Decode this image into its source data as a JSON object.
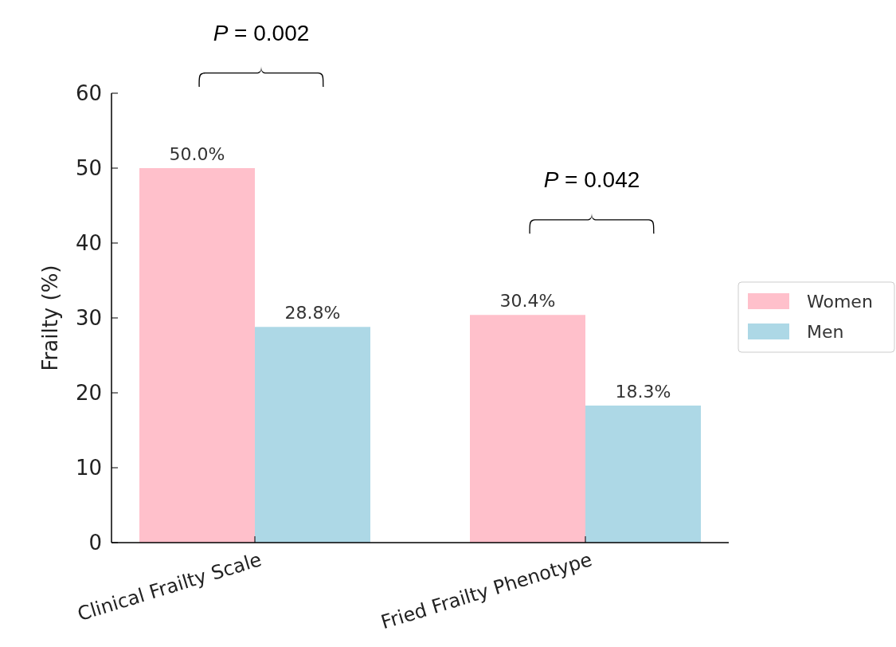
{
  "chart_data": {
    "type": "bar",
    "ylabel": "Frailty (%)",
    "categories": [
      "Clinical Frailty Scale",
      "Fried Frailty Phenotype"
    ],
    "series": [
      {
        "name": "Women",
        "color": "#ffc0cb",
        "values": [
          50.0,
          30.4
        ],
        "value_labels": [
          "50.0%",
          "30.4%"
        ]
      },
      {
        "name": "Men",
        "color": "#add8e6",
        "values": [
          28.8,
          18.3
        ],
        "value_labels": [
          "28.8%",
          "18.3%"
        ]
      }
    ],
    "ylim": [
      0,
      60
    ],
    "yticks": [
      0,
      10,
      20,
      30,
      40,
      50,
      60
    ],
    "legend": "right",
    "grid": false,
    "annotations": [
      "P = 0.002",
      "P = 0.042"
    ]
  }
}
